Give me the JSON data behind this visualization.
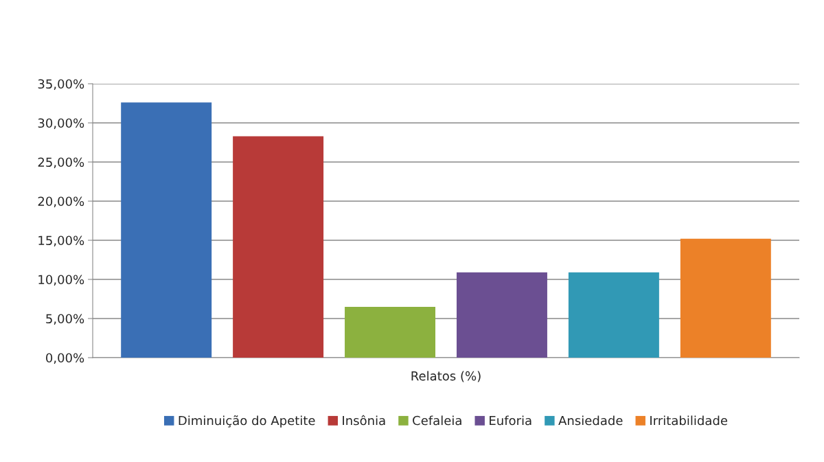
{
  "chart_data": {
    "type": "bar",
    "categories": [
      "Relatos (%)"
    ],
    "series": [
      {
        "name": "Diminuição do Apetite",
        "color": "#3a6fb5",
        "values": [
          32.6
        ]
      },
      {
        "name": "Insônia",
        "color": "#b83a38",
        "values": [
          28.3
        ]
      },
      {
        "name": "Cefaleia",
        "color": "#8cb13f",
        "values": [
          6.5
        ]
      },
      {
        "name": "Euforia",
        "color": "#6b4f92",
        "values": [
          10.9
        ]
      },
      {
        "name": "Ansiedade",
        "color": "#3199b5",
        "values": [
          10.9
        ]
      },
      {
        "name": "Irritabilidade",
        "color": "#ec8128",
        "values": [
          15.2
        ]
      }
    ],
    "ylim": [
      0,
      35
    ],
    "yticks": [
      {
        "value": 0,
        "label": "0,00%"
      },
      {
        "value": 5,
        "label": "5,00%"
      },
      {
        "value": 10,
        "label": "10,00%"
      },
      {
        "value": 15,
        "label": "15,00%"
      },
      {
        "value": 20,
        "label": "20,00%"
      },
      {
        "value": 25,
        "label": "25,00%"
      },
      {
        "value": 30,
        "label": "30,00%"
      },
      {
        "value": 35,
        "label": "35,00%"
      }
    ],
    "grid": "y",
    "legend": "bottom"
  }
}
